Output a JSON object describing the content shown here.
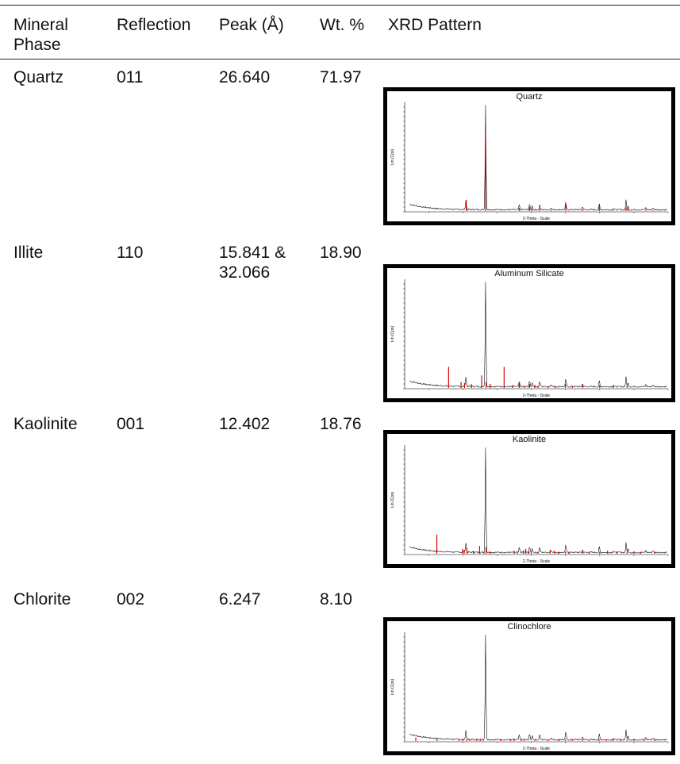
{
  "table": {
    "headers": {
      "mineral_phase": "Mineral\nPhase",
      "reflection": "Reflection",
      "peak": "Peak (Å)",
      "wt": "Wt. %",
      "xrd": "XRD Pattern"
    },
    "rows": [
      {
        "mineral": "Quartz",
        "reflection": "011",
        "peak": "26.640",
        "wt": "71.97",
        "pattern_title": "Quartz"
      },
      {
        "mineral": "Illite",
        "reflection": "110",
        "peak": "15.841 &\n32.066",
        "wt": "18.90",
        "pattern_title": "Aluminum Silicate"
      },
      {
        "mineral": "Kaolinite",
        "reflection": "001",
        "peak": "12.402",
        "wt": "18.76",
        "pattern_title": "Kaolinite"
      },
      {
        "mineral": "Chlorite",
        "reflection": "002",
        "peak": "6.247",
        "wt": "8.10",
        "pattern_title": "Clinochlore"
      }
    ]
  },
  "chart_data": [
    {
      "type": "line",
      "title": "Quartz",
      "xlabel": "2-Theta - Scale",
      "ylabel": "Lin (Cps)",
      "ref_peaks": [
        [
          21,
          25
        ],
        [
          26.64,
          170
        ],
        [
          36.5,
          8
        ],
        [
          39.5,
          10
        ],
        [
          40.3,
          6
        ],
        [
          42.5,
          7
        ],
        [
          45.8,
          4
        ],
        [
          50.1,
          18
        ],
        [
          55,
          4
        ],
        [
          59.9,
          14
        ],
        [
          64,
          3
        ],
        [
          67.7,
          9
        ],
        [
          68.3,
          6
        ],
        [
          73.5,
          3
        ],
        [
          75.6,
          3
        ],
        [
          77.6,
          2
        ]
      ],
      "color_ref": "#e00000",
      "color_obs": "#111111"
    },
    {
      "type": "line",
      "title": "Aluminum Silicate",
      "xlabel": "2-Theta - Scale",
      "ylabel": "Lin (Cps)",
      "ref_peaks": [
        [
          15.84,
          46
        ],
        [
          19.5,
          14
        ],
        [
          20.5,
          12
        ],
        [
          22.5,
          10
        ],
        [
          25.5,
          28
        ],
        [
          26.8,
          14
        ],
        [
          28,
          10
        ],
        [
          32.07,
          46
        ],
        [
          34.5,
          8
        ],
        [
          36.5,
          12
        ],
        [
          38,
          6
        ],
        [
          39.5,
          10
        ],
        [
          41,
          8
        ],
        [
          42,
          6
        ],
        [
          45,
          6
        ],
        [
          47,
          6
        ],
        [
          50,
          10
        ],
        [
          52,
          6
        ],
        [
          55,
          8
        ],
        [
          60,
          8
        ],
        [
          64,
          6
        ],
        [
          68,
          6
        ]
      ],
      "color_ref": "#e00000",
      "color_obs": "#111111"
    },
    {
      "type": "line",
      "title": "Kaolinite",
      "xlabel": "2-Theta - Scale",
      "ylabel": "Lin (Cps)",
      "ref_peaks": [
        [
          12.4,
          42
        ],
        [
          19.9,
          12
        ],
        [
          20.4,
          10
        ],
        [
          21.2,
          14
        ],
        [
          23.1,
          8
        ],
        [
          24.9,
          18
        ],
        [
          26.2,
          6
        ],
        [
          26.8,
          16
        ],
        [
          28,
          6
        ],
        [
          35,
          8
        ],
        [
          36,
          6
        ],
        [
          37.7,
          9
        ],
        [
          38.4,
          12
        ],
        [
          39.3,
          8
        ],
        [
          40,
          6
        ],
        [
          42,
          6
        ],
        [
          45.5,
          10
        ],
        [
          46.8,
          8
        ],
        [
          48,
          6
        ],
        [
          50,
          6
        ],
        [
          51,
          6
        ],
        [
          55,
          6
        ],
        [
          57,
          6
        ],
        [
          60,
          6
        ],
        [
          62.3,
          8
        ],
        [
          65,
          6
        ],
        [
          68,
          6
        ],
        [
          70,
          6
        ],
        [
          72,
          6
        ],
        [
          76,
          6
        ]
      ],
      "color_ref": "#e00000",
      "color_obs": "#111111"
    },
    {
      "type": "line",
      "title": "Clinochlore",
      "xlabel": "2-Theta - Scale",
      "ylabel": "Lin (Cps)",
      "ref_peaks": [
        [
          6.25,
          9
        ],
        [
          12.5,
          5
        ],
        [
          18.8,
          4
        ],
        [
          20,
          5
        ],
        [
          21,
          4
        ],
        [
          22,
          4
        ],
        [
          24,
          4
        ],
        [
          25.1,
          6
        ],
        [
          26,
          4
        ],
        [
          31,
          5
        ],
        [
          34,
          4
        ],
        [
          35,
          5
        ],
        [
          37,
          5
        ],
        [
          38,
          4
        ],
        [
          41,
          4
        ],
        [
          45,
          5
        ],
        [
          48,
          4
        ],
        [
          50,
          5
        ],
        [
          52,
          4
        ],
        [
          55,
          4
        ],
        [
          57,
          4
        ],
        [
          59.8,
          6
        ],
        [
          62,
          4
        ],
        [
          64,
          5
        ],
        [
          66,
          4
        ],
        [
          68,
          4
        ],
        [
          70,
          4
        ],
        [
          73,
          4
        ],
        [
          76,
          4
        ]
      ],
      "color_ref": "#e00000",
      "color_obs": "#111111"
    }
  ]
}
